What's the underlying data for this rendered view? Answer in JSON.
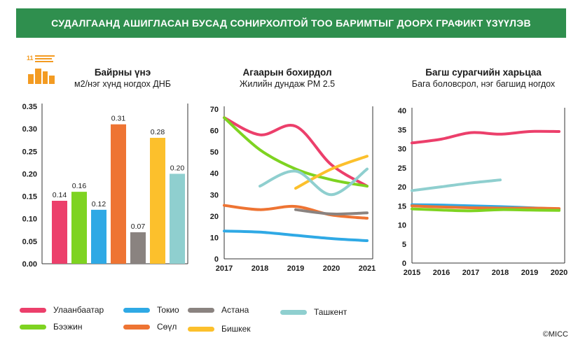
{
  "banner": {
    "title": "СУДАЛГААНД АШИГЛАСАН БУСАД СОНИРХОЛТОЙ ТОО БАРИМТЫГ ДООРХ ГРАФИКТ ҮЗҮҮЛЭВ"
  },
  "sdg_badge": {
    "number": "11"
  },
  "legend": [
    {
      "name": "Улаанбаатар",
      "color": "#ec3f6b"
    },
    {
      "name": "Токио",
      "color": "#2fa9e5"
    },
    {
      "name": "Астана",
      "color": "#8a8380"
    },
    {
      "name": "Ташкент",
      "color": "#8fcfcf"
    },
    {
      "name": "Бээжин",
      "color": "#7ed321"
    },
    {
      "name": "Сөүл",
      "color": "#ee7433"
    },
    {
      "name": "Бишкек",
      "color": "#fcc02c"
    }
  ],
  "copyright": "©МІСС",
  "chart_data": [
    {
      "type": "bar",
      "title": "Байрны үнэ",
      "subtitle": "м2/нэг хүнд ногдох ДНБ",
      "ylim": [
        0,
        0.35
      ],
      "yticks": [
        "0.00",
        "0.05",
        "0.10",
        "0.15",
        "0.20",
        "0.25",
        "0.30",
        "0.35"
      ],
      "grid": false,
      "bars": [
        {
          "city": "Улаанбаатар",
          "value": 0.14,
          "label": "0.14",
          "color": "#ec3f6b"
        },
        {
          "city": "Бээжин",
          "value": 0.16,
          "label": "0.16",
          "color": "#7ed321"
        },
        {
          "city": "Токио",
          "value": 0.12,
          "label": "0.12",
          "color": "#2fa9e5"
        },
        {
          "city": "Сөүл",
          "value": 0.31,
          "label": "0.31",
          "color": "#ee7433"
        },
        {
          "city": "Астана",
          "value": 0.07,
          "label": "0.07",
          "color": "#8a8380"
        },
        {
          "city": "Бишкек",
          "value": 0.28,
          "label": "0.28",
          "color": "#fcc02c"
        },
        {
          "city": "Ташкент",
          "value": 0.2,
          "label": "0.20",
          "color": "#8fcfcf"
        }
      ]
    },
    {
      "type": "line",
      "title": "Агаарын бохирдол",
      "subtitle": "Жилийн дундаж PM 2.5",
      "x": [
        "2017",
        "2018",
        "2019",
        "2020",
        "2021"
      ],
      "ylim": [
        0,
        70
      ],
      "yticks": [
        "0",
        "10",
        "20",
        "30",
        "40",
        "50",
        "60",
        "70"
      ],
      "grid": false,
      "series": [
        {
          "name": "Улаанбаатар",
          "color": "#ec3f6b",
          "points": [
            [
              2017,
              66
            ],
            [
              2018,
              58
            ],
            [
              2019,
              62
            ],
            [
              2020,
              44
            ],
            [
              2021,
              34
            ]
          ]
        },
        {
          "name": "Бээжин",
          "color": "#7ed321",
          "points": [
            [
              2017,
              66
            ],
            [
              2018,
              51
            ],
            [
              2019,
              42
            ],
            [
              2020,
              37
            ],
            [
              2021,
              34
            ]
          ]
        },
        {
          "name": "Токио",
          "color": "#2fa9e5",
          "points": [
            [
              2017,
              13
            ],
            [
              2018,
              12.5
            ],
            [
              2019,
              11
            ],
            [
              2020,
              9.5
            ],
            [
              2021,
              8.5
            ]
          ]
        },
        {
          "name": "Сөүл",
          "color": "#ee7433",
          "points": [
            [
              2017,
              25
            ],
            [
              2018,
              23
            ],
            [
              2019,
              24.5
            ],
            [
              2020,
              20.5
            ],
            [
              2021,
              19
            ]
          ]
        },
        {
          "name": "Астана",
          "color": "#8a8380",
          "points": [
            [
              2019,
              23
            ],
            [
              2020,
              21
            ],
            [
              2021,
              21.5
            ]
          ]
        },
        {
          "name": "Бишкек",
          "color": "#fcc02c",
          "points": [
            [
              2019,
              33
            ],
            [
              2020,
              42
            ],
            [
              2021,
              48
            ]
          ]
        },
        {
          "name": "Ташкент",
          "color": "#8fcfcf",
          "points": [
            [
              2018,
              34
            ],
            [
              2019,
              41
            ],
            [
              2020,
              30
            ],
            [
              2021,
              42
            ]
          ]
        }
      ]
    },
    {
      "type": "line",
      "title": "Багш сурагчийн харьцаа",
      "subtitle": "Бага боловсрол, нэг багшид ногдох",
      "x": [
        "2015",
        "2016",
        "2017",
        "2018",
        "2019",
        "2020"
      ],
      "ylim": [
        0,
        40
      ],
      "yticks": [
        "0",
        "5",
        "10",
        "15",
        "20",
        "25",
        "30",
        "35",
        "40"
      ],
      "grid": false,
      "series": [
        {
          "name": "Улаанбаатар",
          "color": "#ec3f6b",
          "points": [
            [
              2015,
              31.5
            ],
            [
              2016,
              32.5
            ],
            [
              2017,
              34.2
            ],
            [
              2018,
              33.8
            ],
            [
              2019,
              34.5
            ],
            [
              2020,
              34.5
            ]
          ]
        },
        {
          "name": "Ташкент",
          "color": "#8fcfcf",
          "points": [
            [
              2015,
              19
            ],
            [
              2016,
              20
            ],
            [
              2017,
              21
            ],
            [
              2018,
              21.8
            ]
          ]
        },
        {
          "name": "Токио",
          "color": "#2fa9e5",
          "points": [
            [
              2015,
              15.3
            ],
            [
              2016,
              15.2
            ],
            [
              2017,
              15
            ],
            [
              2018,
              14.8
            ],
            [
              2019,
              14.5
            ],
            [
              2020,
              14.2
            ]
          ]
        },
        {
          "name": "Сөүл",
          "color": "#ee7433",
          "points": [
            [
              2015,
              15
            ],
            [
              2016,
              14.7
            ],
            [
              2017,
              14.5
            ],
            [
              2018,
              14.4
            ],
            [
              2019,
              14.4
            ],
            [
              2020,
              14.3
            ]
          ]
        },
        {
          "name": "Бээжин",
          "color": "#7ed321",
          "points": [
            [
              2015,
              14.2
            ],
            [
              2016,
              13.9
            ],
            [
              2017,
              13.7
            ],
            [
              2018,
              14
            ],
            [
              2019,
              13.9
            ],
            [
              2020,
              13.8
            ]
          ]
        }
      ]
    }
  ]
}
